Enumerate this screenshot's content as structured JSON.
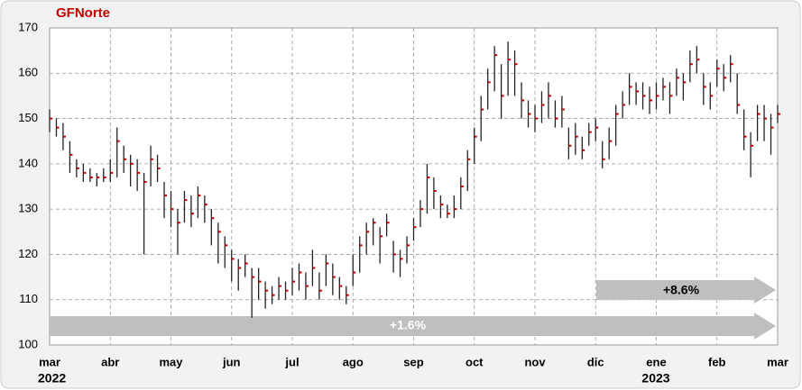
{
  "chart_data": {
    "type": "hlc",
    "title": "GFNorte",
    "title_color": "#c00000",
    "categories": [
      "mar",
      null,
      null,
      null,
      null,
      null,
      null,
      null,
      null,
      "abr",
      null,
      null,
      null,
      null,
      null,
      null,
      null,
      null,
      "may",
      null,
      null,
      null,
      null,
      null,
      null,
      null,
      null,
      "jun",
      null,
      null,
      null,
      null,
      null,
      null,
      null,
      null,
      "jul",
      null,
      null,
      null,
      null,
      null,
      null,
      null,
      null,
      "ago",
      null,
      null,
      null,
      null,
      null,
      null,
      null,
      null,
      "sep",
      null,
      null,
      null,
      null,
      null,
      null,
      null,
      null,
      "oct",
      null,
      null,
      null,
      null,
      null,
      null,
      null,
      null,
      "nov",
      null,
      null,
      null,
      null,
      null,
      null,
      null,
      null,
      "dic",
      null,
      null,
      null,
      null,
      null,
      null,
      null,
      null,
      "ene",
      null,
      null,
      null,
      null,
      null,
      null,
      null,
      null,
      "feb",
      null,
      null,
      null,
      null,
      null,
      null,
      null,
      null,
      "mar"
    ],
    "year_labels": [
      "2022",
      "2023"
    ],
    "high": [
      152,
      150,
      149,
      145,
      141,
      140,
      139,
      138,
      139,
      141,
      148,
      144,
      142,
      141,
      138,
      144,
      142,
      136,
      134,
      130,
      134,
      133,
      135,
      133,
      130,
      127,
      124,
      121,
      119,
      120,
      117,
      117,
      114,
      113,
      115,
      114,
      117,
      118,
      116,
      121,
      116,
      120,
      118,
      115,
      113,
      120,
      124,
      127,
      128,
      126,
      129,
      123,
      121,
      124,
      128,
      132,
      140,
      137,
      133,
      131,
      133,
      137,
      143,
      148,
      155,
      161,
      166,
      162,
      167,
      165,
      158,
      154,
      153,
      156,
      158,
      154,
      155,
      148,
      149,
      146,
      149,
      150,
      145,
      148,
      153,
      156,
      160,
      158,
      158,
      157,
      158,
      159,
      158,
      161,
      160,
      165,
      166,
      160,
      158,
      163,
      162,
      164,
      160,
      152,
      147,
      153,
      153,
      151,
      153
    ],
    "low": [
      147,
      146,
      143,
      138,
      137,
      136,
      136,
      135,
      136,
      136,
      137,
      138,
      135,
      134,
      120,
      135,
      136,
      128,
      126,
      120,
      127,
      126,
      128,
      127,
      122,
      118,
      117,
      114,
      112,
      115,
      106,
      110,
      108,
      109,
      110,
      110,
      111,
      112,
      110,
      113,
      110,
      113,
      111,
      110,
      109,
      113,
      116,
      120,
      122,
      118,
      124,
      116,
      115,
      118,
      123,
      126,
      129,
      130,
      128,
      128,
      128,
      130,
      134,
      140,
      145,
      152,
      156,
      150,
      155,
      155,
      150,
      148,
      147,
      149,
      150,
      148,
      148,
      141,
      142,
      141,
      144,
      145,
      139,
      141,
      144,
      150,
      153,
      153,
      152,
      151,
      152,
      154,
      151,
      155,
      154,
      158,
      160,
      153,
      152,
      157,
      156,
      158,
      151,
      143,
      137,
      145,
      145,
      142,
      149
    ],
    "close": [
      150,
      148,
      146,
      142,
      139,
      138,
      137,
      137,
      137,
      138,
      145,
      141,
      140,
      138,
      136,
      141,
      139,
      133,
      130,
      127,
      132,
      129,
      133,
      131,
      128,
      125,
      122,
      119,
      117,
      118,
      115,
      114,
      112,
      111,
      113,
      112,
      114,
      116,
      113,
      117,
      112,
      118,
      115,
      113,
      111,
      116,
      122,
      125,
      127,
      124,
      127,
      120,
      119,
      122,
      126,
      130,
      137,
      134,
      131,
      129,
      130,
      135,
      141,
      146,
      152,
      158,
      164,
      155,
      163,
      162,
      154,
      151,
      150,
      153,
      155,
      150,
      152,
      144,
      146,
      143,
      147,
      148,
      141,
      145,
      151,
      153,
      157,
      156,
      155,
      154,
      155,
      157,
      155,
      159,
      158,
      162,
      163,
      157,
      155,
      161,
      159,
      162,
      153,
      146,
      144,
      151,
      150,
      148,
      151
    ],
    "color": "#222222",
    "close_color": "#c00000",
    "ylim": [
      100,
      170
    ],
    "yticks": [
      100,
      110,
      120,
      130,
      140,
      150,
      160,
      170
    ],
    "grid": true,
    "annotations": [
      "+1.6%",
      "+8.6%"
    ],
    "annotation_color": "#bfbfbf"
  }
}
